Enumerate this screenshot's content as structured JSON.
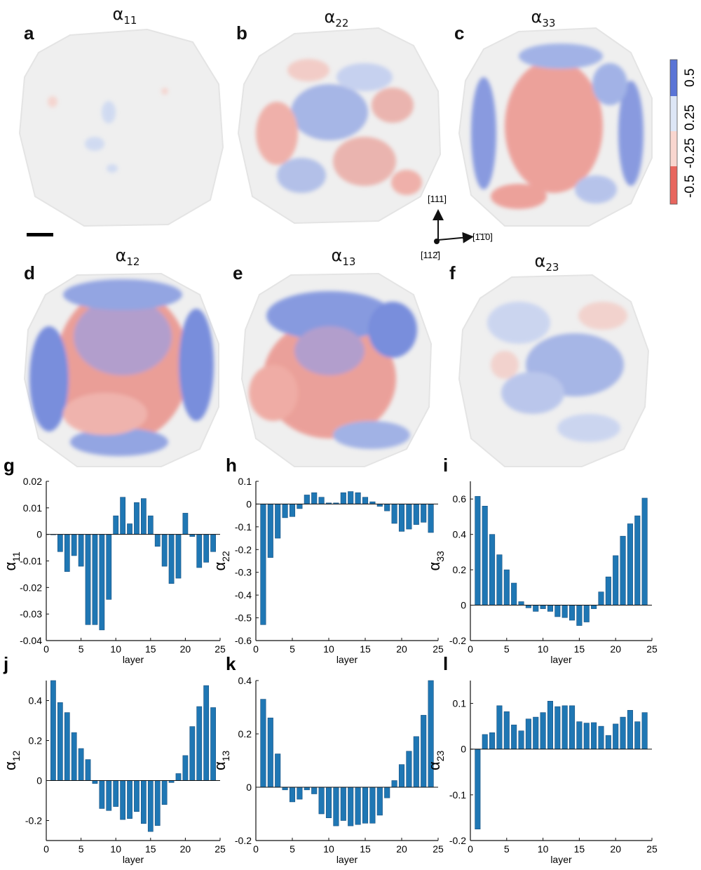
{
  "maps": [
    {
      "letter": "a",
      "symbol": "α",
      "subscript": "11"
    },
    {
      "letter": "b",
      "symbol": "α",
      "subscript": "22"
    },
    {
      "letter": "c",
      "symbol": "α",
      "subscript": "33"
    },
    {
      "letter": "d",
      "symbol": "α",
      "subscript": "12"
    },
    {
      "letter": "e",
      "symbol": "α",
      "subscript": "13"
    },
    {
      "letter": "f",
      "symbol": "α",
      "subscript": "23"
    }
  ],
  "colorbar": {
    "tick_labels": [
      "-0.5",
      "-0.25",
      "0.25",
      "0.5"
    ],
    "colors": [
      "#e8665e",
      "#f9d6cf",
      "#dde6f6",
      "#5a74d6"
    ]
  },
  "orientation": {
    "up_label": "[111]",
    "right_label": "[1̄1̄0]",
    "out_label": "[112̄]"
  },
  "chart_data": [
    {
      "letter": "g",
      "type": "bar",
      "ylabel_symbol": "α",
      "ylabel_sub": "11",
      "xlabel": "layer",
      "xlim": [
        0,
        25
      ],
      "ylim": [
        -0.04,
        0.02
      ],
      "yticks": [
        -0.04,
        -0.03,
        -0.02,
        -0.01,
        0,
        0.01,
        0.02
      ],
      "ytick_labels": [
        "-0.04",
        "-0.03",
        "-0.02",
        "-0.01",
        "0",
        "0.01",
        "0.02"
      ],
      "xticks": [
        0,
        5,
        10,
        15,
        20,
        25
      ],
      "xtick_labels": [
        "0",
        "5",
        "10",
        "15",
        "20",
        "25"
      ],
      "x": [
        1,
        2,
        3,
        4,
        5,
        6,
        7,
        8,
        9,
        10,
        11,
        12,
        13,
        14,
        15,
        16,
        17,
        18,
        19,
        20,
        21,
        22,
        23,
        24
      ],
      "values": [
        0,
        -0.0065,
        -0.014,
        -0.008,
        -0.012,
        -0.034,
        -0.034,
        -0.036,
        -0.0245,
        0.007,
        0.014,
        0.004,
        0.012,
        0.0135,
        0.007,
        -0.0045,
        -0.012,
        -0.0185,
        -0.0165,
        0.008,
        -0.0008,
        -0.0125,
        -0.0105,
        -0.0065
      ]
    },
    {
      "letter": "h",
      "type": "bar",
      "ylabel_symbol": "α",
      "ylabel_sub": "22",
      "xlabel": "layer",
      "xlim": [
        0,
        25
      ],
      "ylim": [
        -0.6,
        0.1
      ],
      "yticks": [
        -0.6,
        -0.5,
        -0.4,
        -0.3,
        -0.2,
        -0.1,
        0,
        0.1
      ],
      "ytick_labels": [
        "-0.6",
        "-0.5",
        "-0.4",
        "-0.3",
        "-0.2",
        "-0.1",
        "0",
        "0.1"
      ],
      "xticks": [
        0,
        5,
        10,
        15,
        20,
        25
      ],
      "xtick_labels": [
        "0",
        "5",
        "10",
        "15",
        "20",
        "25"
      ],
      "x": [
        1,
        2,
        3,
        4,
        5,
        6,
        7,
        8,
        9,
        10,
        11,
        12,
        13,
        14,
        15,
        16,
        17,
        18,
        19,
        20,
        21,
        22,
        23,
        24
      ],
      "values": [
        -0.53,
        -0.235,
        -0.15,
        -0.06,
        -0.055,
        -0.02,
        0.04,
        0.05,
        0.03,
        0.005,
        0.005,
        0.05,
        0.055,
        0.05,
        0.03,
        0.01,
        -0.01,
        -0.03,
        -0.085,
        -0.12,
        -0.11,
        -0.09,
        -0.08,
        -0.125
      ]
    },
    {
      "letter": "i",
      "type": "bar",
      "ylabel_symbol": "α",
      "ylabel_sub": "33",
      "xlabel": "layer",
      "xlim": [
        0,
        25
      ],
      "ylim": [
        -0.2,
        0.7
      ],
      "yticks": [
        -0.2,
        0,
        0.2,
        0.4,
        0.6
      ],
      "ytick_labels": [
        "-0.2",
        "0",
        "0.2",
        "0.4",
        "0.6"
      ],
      "xticks": [
        0,
        5,
        10,
        15,
        20,
        25
      ],
      "xtick_labels": [
        "0",
        "5",
        "10",
        "15",
        "20",
        "25"
      ],
      "x": [
        1,
        2,
        3,
        4,
        5,
        6,
        7,
        8,
        9,
        10,
        11,
        12,
        13,
        14,
        15,
        16,
        17,
        18,
        19,
        20,
        21,
        22,
        23,
        24
      ],
      "values": [
        0.615,
        0.56,
        0.4,
        0.285,
        0.2,
        0.125,
        0.02,
        -0.015,
        -0.035,
        -0.02,
        -0.035,
        -0.065,
        -0.07,
        -0.085,
        -0.115,
        -0.095,
        -0.02,
        0.075,
        0.16,
        0.28,
        0.39,
        0.46,
        0.505,
        0.605
      ]
    },
    {
      "letter": "j",
      "type": "bar",
      "ylabel_symbol": "α",
      "ylabel_sub": "12",
      "xlabel": "layer",
      "xlim": [
        0,
        25
      ],
      "ylim": [
        -0.3,
        0.5
      ],
      "yticks": [
        -0.2,
        0,
        0.2,
        0.4
      ],
      "ytick_labels": [
        "-0.2",
        "0",
        "0.2",
        "0.4"
      ],
      "xticks": [
        0,
        5,
        10,
        15,
        20,
        25
      ],
      "xtick_labels": [
        "0",
        "5",
        "10",
        "15",
        "20",
        "25"
      ],
      "x": [
        1,
        2,
        3,
        4,
        5,
        6,
        7,
        8,
        9,
        10,
        11,
        12,
        13,
        14,
        15,
        16,
        17,
        18,
        19,
        20,
        21,
        22,
        23,
        24
      ],
      "values": [
        0.5,
        0.39,
        0.34,
        0.24,
        0.16,
        0.105,
        -0.015,
        -0.14,
        -0.15,
        -0.13,
        -0.195,
        -0.19,
        -0.155,
        -0.215,
        -0.255,
        -0.225,
        -0.12,
        -0.01,
        0.035,
        0.125,
        0.27,
        0.37,
        0.475,
        0.365
      ]
    },
    {
      "letter": "k",
      "type": "bar",
      "ylabel_symbol": "α",
      "ylabel_sub": "13",
      "xlabel": "layer",
      "xlim": [
        0,
        25
      ],
      "ylim": [
        -0.2,
        0.4
      ],
      "yticks": [
        -0.2,
        0,
        0.2,
        0.4
      ],
      "ytick_labels": [
        "-0.2",
        "0",
        "0.2",
        "0.4"
      ],
      "xticks": [
        0,
        5,
        10,
        15,
        20,
        25
      ],
      "xtick_labels": [
        "0",
        "5",
        "10",
        "15",
        "20",
        "25"
      ],
      "x": [
        1,
        2,
        3,
        4,
        5,
        6,
        7,
        8,
        9,
        10,
        11,
        12,
        13,
        14,
        15,
        16,
        17,
        18,
        19,
        20,
        21,
        22,
        23,
        24
      ],
      "values": [
        0.33,
        0.26,
        0.125,
        -0.01,
        -0.055,
        -0.045,
        -0.01,
        -0.025,
        -0.1,
        -0.115,
        -0.145,
        -0.125,
        -0.145,
        -0.14,
        -0.135,
        -0.135,
        -0.105,
        -0.04,
        0.025,
        0.085,
        0.135,
        0.19,
        0.27,
        0.4
      ]
    },
    {
      "letter": "l",
      "type": "bar",
      "ylabel_symbol": "α",
      "ylabel_sub": "23",
      "xlabel": "layer",
      "xlim": [
        0,
        25
      ],
      "ylim": [
        -0.2,
        0.15
      ],
      "yticks": [
        -0.2,
        -0.1,
        0,
        0.1
      ],
      "ytick_labels": [
        "-0.2",
        "-0.1",
        "0",
        "0.1"
      ],
      "xticks": [
        0,
        5,
        10,
        15,
        20,
        25
      ],
      "xtick_labels": [
        "0",
        "5",
        "10",
        "15",
        "20",
        "25"
      ],
      "x": [
        1,
        2,
        3,
        4,
        5,
        6,
        7,
        8,
        9,
        10,
        11,
        12,
        13,
        14,
        15,
        16,
        17,
        18,
        19,
        20,
        21,
        22,
        23,
        24
      ],
      "values": [
        -0.175,
        0.032,
        0.036,
        0.095,
        0.082,
        0.053,
        0.04,
        0.066,
        0.07,
        0.08,
        0.105,
        0.093,
        0.095,
        0.095,
        0.06,
        0.057,
        0.058,
        0.05,
        0.03,
        0.055,
        0.07,
        0.085,
        0.06,
        0.08
      ]
    }
  ]
}
